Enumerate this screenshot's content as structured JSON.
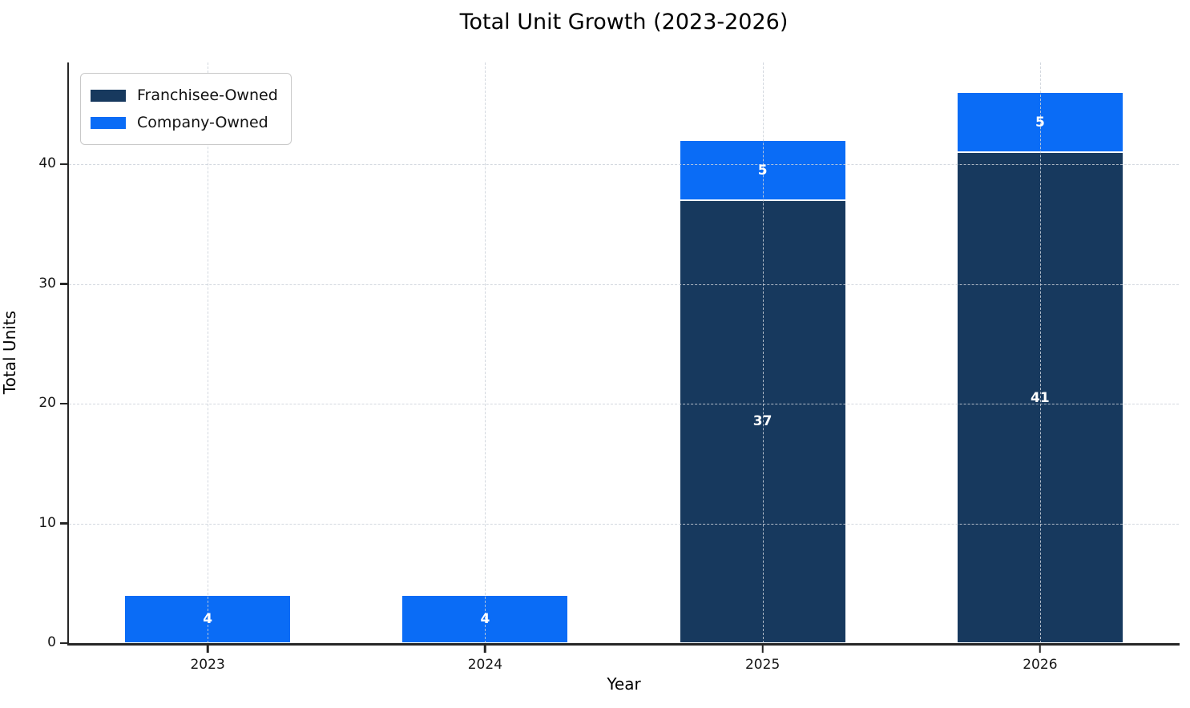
{
  "chart_data": {
    "type": "bar",
    "stacked": true,
    "title": "Total Unit Growth (2023-2026)",
    "xlabel": "Year",
    "ylabel": "Total Units",
    "categories": [
      "2023",
      "2024",
      "2025",
      "2026"
    ],
    "series": [
      {
        "name": "Franchisee-Owned",
        "color": "#17395E",
        "values": [
          0,
          0,
          37,
          41
        ]
      },
      {
        "name": "Company-Owned",
        "color": "#0A6CF6",
        "values": [
          4,
          4,
          5,
          5
        ]
      }
    ],
    "totals": [
      4,
      4,
      42,
      46
    ],
    "ylim": [
      0,
      48.5
    ],
    "yticks": [
      0,
      10,
      20,
      30,
      40
    ],
    "grid": true,
    "grid_style": "dashed",
    "legend_position": "upper left",
    "bar_edge_color": "#ffffff",
    "value_label_color": "#ffffff"
  }
}
